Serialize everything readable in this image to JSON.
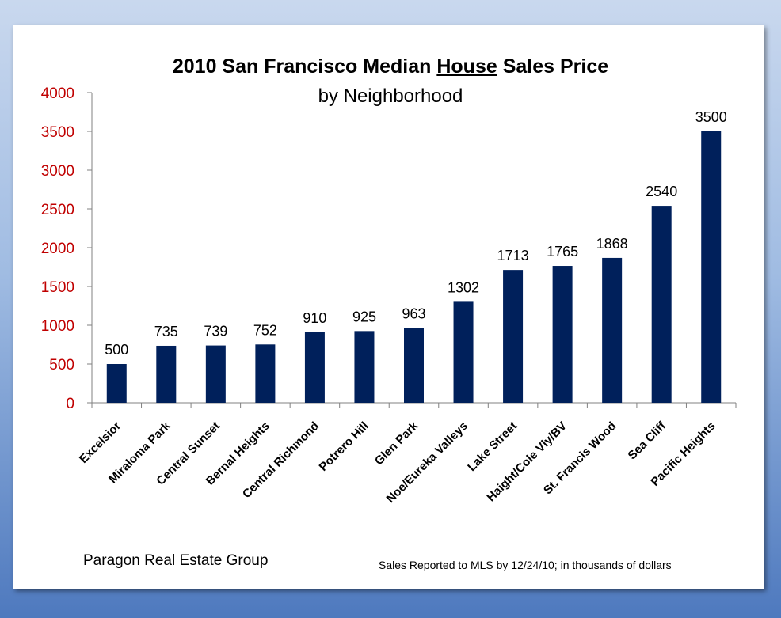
{
  "chart_data": {
    "type": "bar",
    "title_parts": [
      "2010 San Francisco Median ",
      "House",
      " Sales Price"
    ],
    "subtitle": "by Neighborhood",
    "xlabel": "",
    "ylabel": "",
    "categories": [
      "Excelsior",
      "Miraloma Park",
      "Central Sunset",
      "Bernal Heights",
      "Central Richmond",
      "Potrero Hill",
      "Glen Park",
      "Noe/Eureka Valleys",
      "Lake Street",
      "Haight/Cole Vly/BV",
      "St. Francis Wood",
      "Sea Cliff",
      "Pacific Heights"
    ],
    "values": [
      500,
      735,
      739,
      752,
      910,
      925,
      963,
      1302,
      1713,
      1765,
      1868,
      2540,
      3500
    ],
    "ylim": [
      0,
      4000
    ],
    "yticks": [
      0,
      500,
      1000,
      1500,
      2000,
      2500,
      3000,
      3500,
      4000
    ],
    "grid": false,
    "legend": "none",
    "data_labels": true,
    "bar_color": "#00205b",
    "ytick_color": "#c00000"
  },
  "source": "Paragon Real Estate Group",
  "footnote": "Sales Reported to MLS by 12/24/10;  in thousands  of dollars"
}
